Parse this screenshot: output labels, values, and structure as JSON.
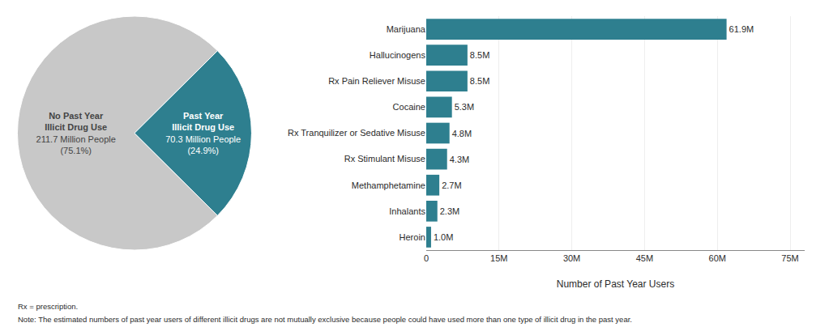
{
  "chart_data": [
    {
      "type": "pie",
      "categories": [
        "No Past Year\nIllicit Drug Use",
        "Past Year\nIllicit Drug Use"
      ],
      "values": [
        75.1,
        24.9
      ],
      "value_labels": [
        "211.7 Million People\n(75.1%)",
        "70.3 Million People\n(24.9%)"
      ],
      "colors": [
        "#c8c8c8",
        "#2e7f8f"
      ]
    },
    {
      "type": "bar",
      "orientation": "horizontal",
      "categories": [
        "Heroin",
        "Inhalants",
        "Methamphetamine",
        "Rx Stimulant Misuse",
        "Rx Tranquilizer or Sedative Misuse",
        "Cocaine",
        "Rx Pain Reliever Misuse",
        "Hallucinogens",
        "Marijuana"
      ],
      "values": [
        1.0,
        2.3,
        2.7,
        4.3,
        4.8,
        5.3,
        8.5,
        8.5,
        61.9
      ],
      "value_labels": [
        "1.0M",
        "2.3M",
        "2.7M",
        "4.3M",
        "4.8M",
        "5.3M",
        "8.5M",
        "8.5M",
        "61.9M"
      ],
      "data_labels": true,
      "color": "#2e7f8f",
      "xlabel": "Number of Past Year Users",
      "xlim": [
        0,
        78
      ],
      "xticks": [
        0,
        {
          "value": 15,
          "label": "15M"
        },
        {
          "value": 30,
          "label": "30M"
        },
        {
          "value": 45,
          "label": "45M"
        },
        {
          "value": 60,
          "label": "60M"
        },
        {
          "value": 75,
          "label": "75M"
        }
      ],
      "annotations": [
        "Rx = prescription.",
        "Note: The estimated numbers of past year users of different illicit drugs are not mutually exclusive because people could have used more than one type of illicit drug in the past year."
      ]
    }
  ]
}
